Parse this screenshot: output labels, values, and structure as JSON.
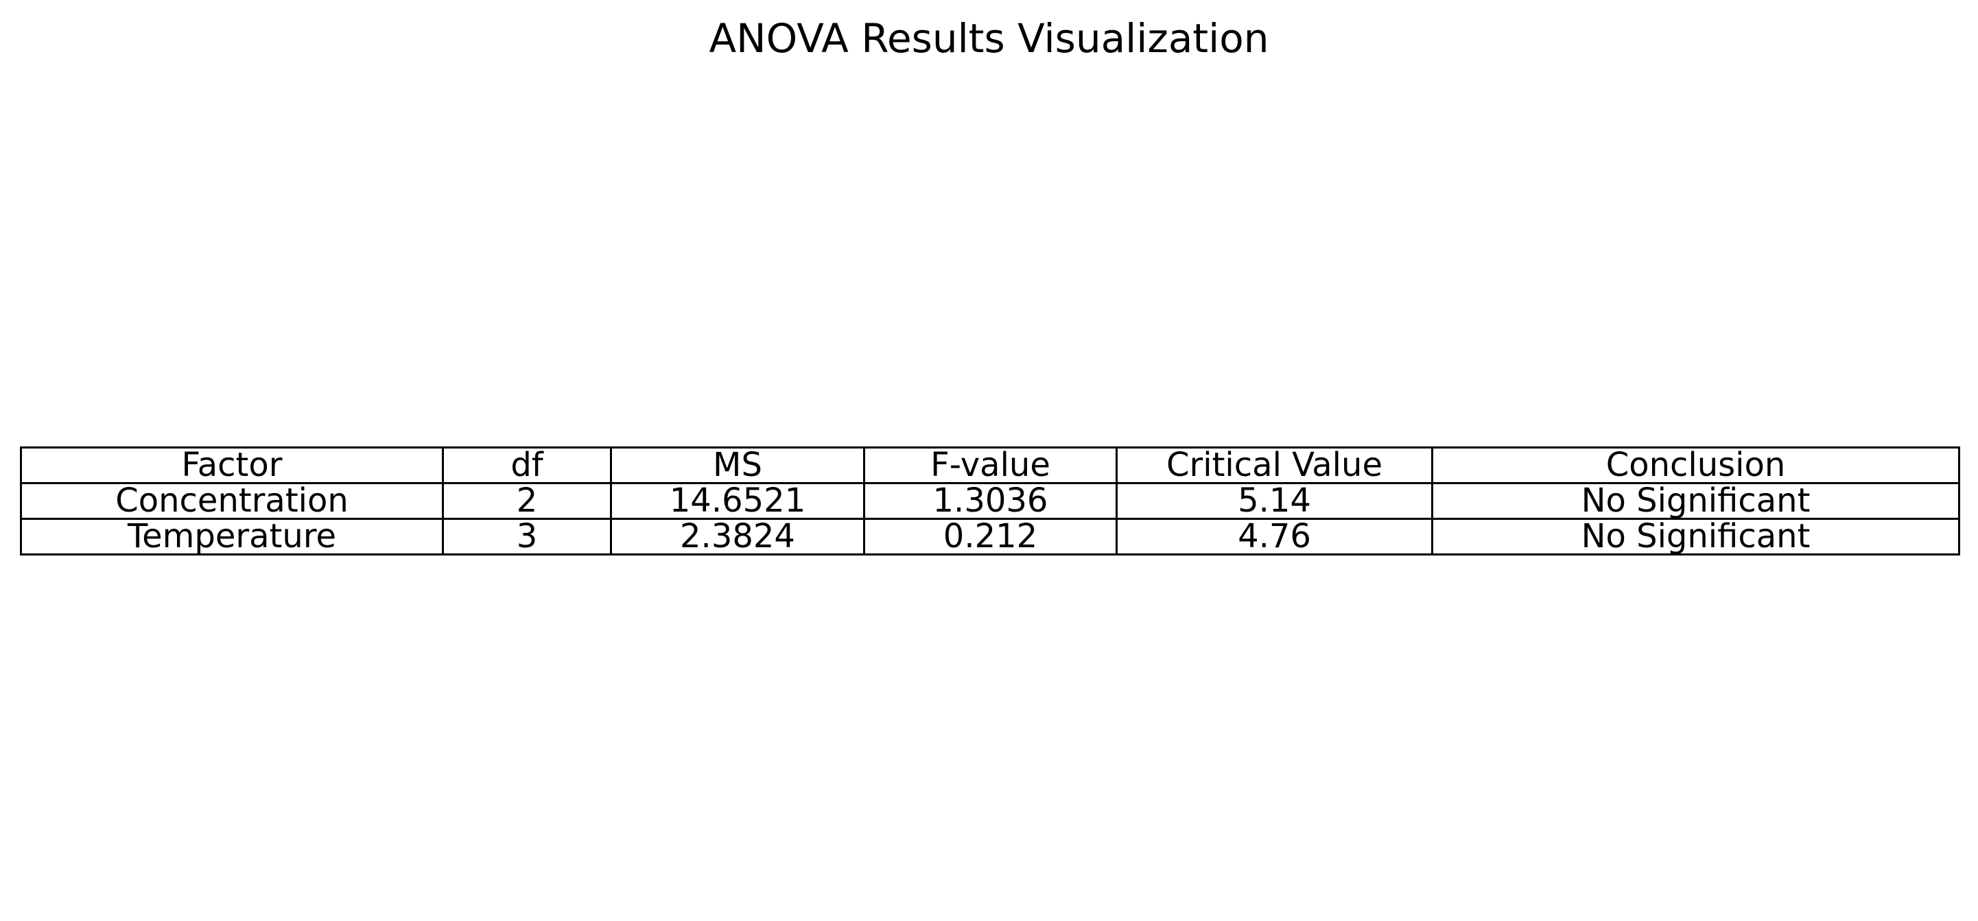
{
  "chart_data": {
    "type": "table",
    "title": "ANOVA Results Visualization",
    "columns": [
      "Factor",
      "df",
      "MS",
      "F-value",
      "Critical Value",
      "Conclusion"
    ],
    "rows": [
      [
        "Concentration",
        "2",
        "14.6521",
        "1.3036",
        "5.14",
        "No Significant"
      ],
      [
        "Temperature",
        "3",
        "2.3824",
        "0.212",
        "4.76",
        "No Significant"
      ]
    ],
    "grid": true
  }
}
